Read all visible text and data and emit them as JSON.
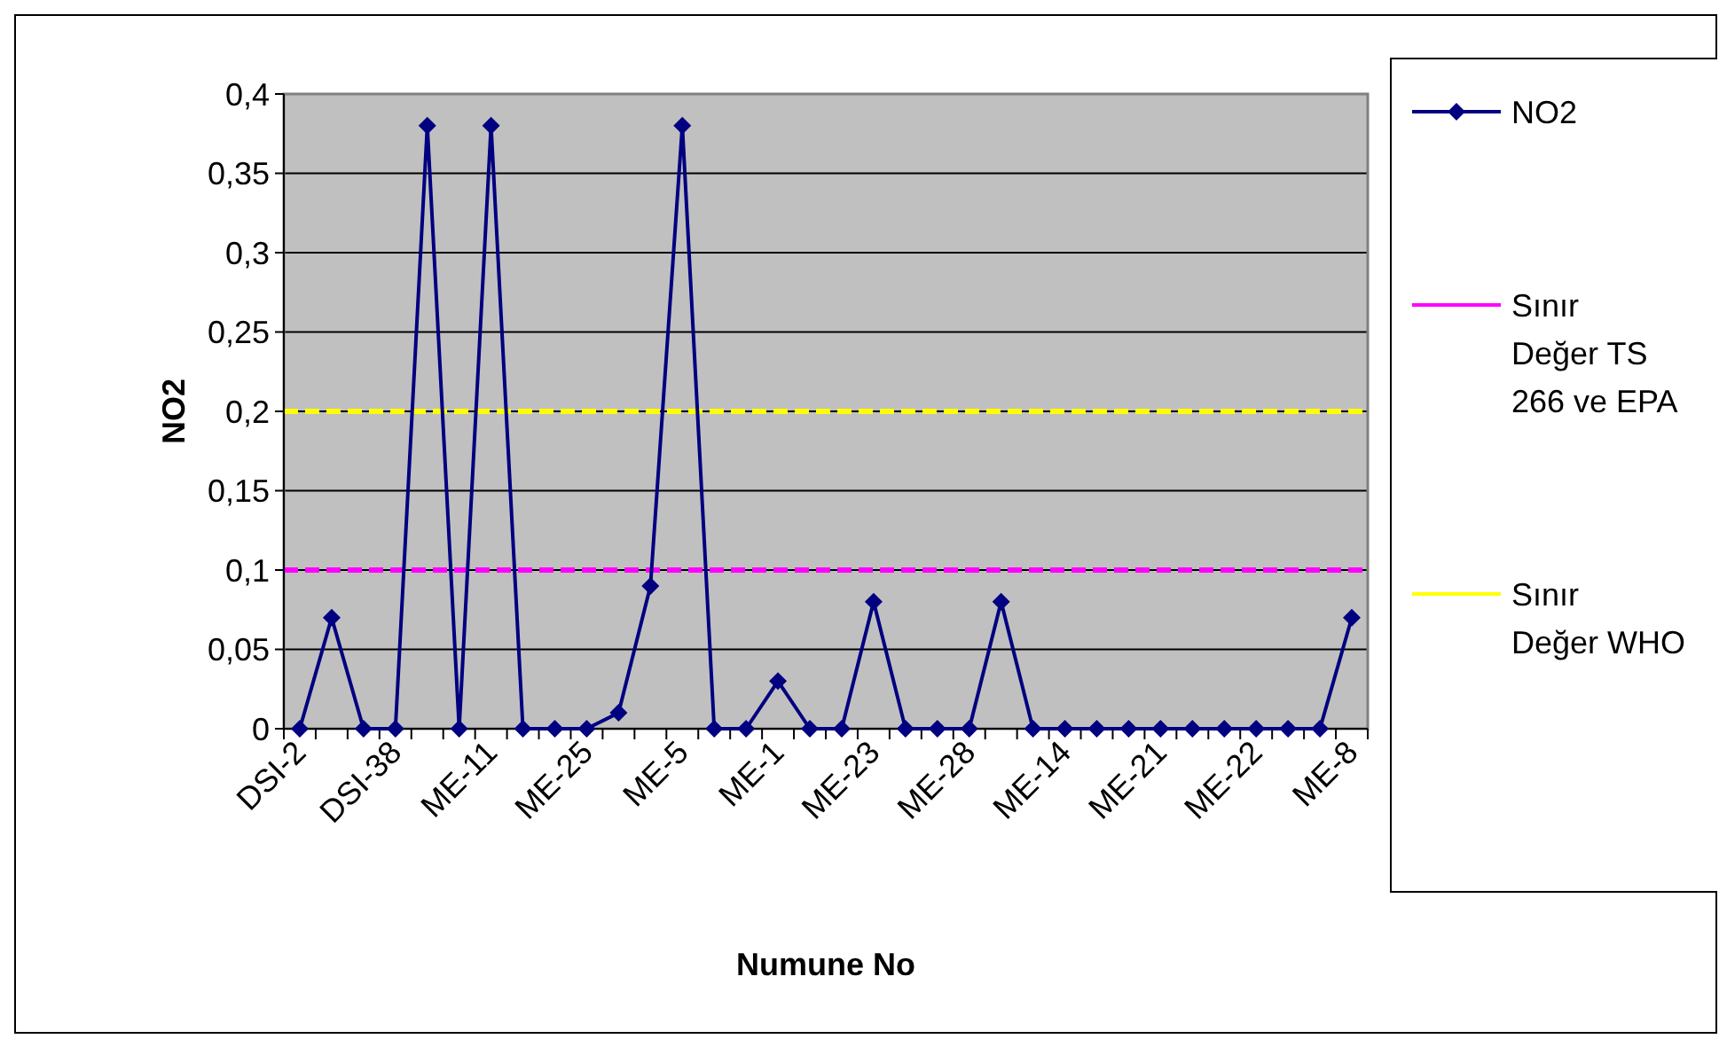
{
  "chart_data": {
    "type": "line",
    "xlabel": "Numune No",
    "ylabel": "NO2",
    "categories": [
      "DSI-2",
      null,
      null,
      "DSI-38",
      null,
      null,
      "ME-11",
      null,
      null,
      "ME-25",
      null,
      null,
      "ME-5",
      null,
      null,
      "ME-1",
      null,
      null,
      "ME-23",
      null,
      null,
      "ME-28",
      null,
      null,
      "ME-14",
      null,
      null,
      "ME-21",
      null,
      null,
      "ME-22",
      null,
      null,
      "ME-8"
    ],
    "series": [
      {
        "name": "NO2",
        "color": "#000080",
        "values": [
          0,
          0.07,
          0,
          0,
          0.38,
          0,
          0.38,
          0,
          0,
          0,
          0.01,
          0.09,
          0.38,
          0,
          0,
          0.03,
          0,
          0,
          0.08,
          0,
          0,
          0,
          0.08,
          0,
          0,
          0,
          0,
          0,
          0,
          0,
          0,
          0,
          0,
          0.07
        ]
      }
    ],
    "ylim": [
      0,
      0.4
    ],
    "yticks": [
      0,
      {
        "value": 0.05,
        "label": "0,05"
      },
      {
        "value": 0.1,
        "label": "0,1"
      },
      {
        "value": 0.15,
        "label": "0,15"
      },
      {
        "value": 0.2,
        "label": "0,2"
      },
      {
        "value": 0.25,
        "label": "0,25"
      },
      {
        "value": 0.3,
        "label": "0,3"
      },
      {
        "value": 0.35,
        "label": "0,35"
      },
      {
        "value": 0.4,
        "label": "0,4"
      }
    ],
    "ref_lines": [
      {
        "axis": "y",
        "value": 0.1,
        "label": "Sınır Değer TS 266 ve EPA",
        "color": "#ff00ff",
        "line_style": "dashed"
      },
      {
        "axis": "y",
        "value": 0.2,
        "label": "Sınır Değer WHO",
        "color": "#ffff00",
        "line_style": "dashed"
      }
    ],
    "grid": "y",
    "legend": "right",
    "marker": "diamond",
    "line_style": "solid"
  }
}
